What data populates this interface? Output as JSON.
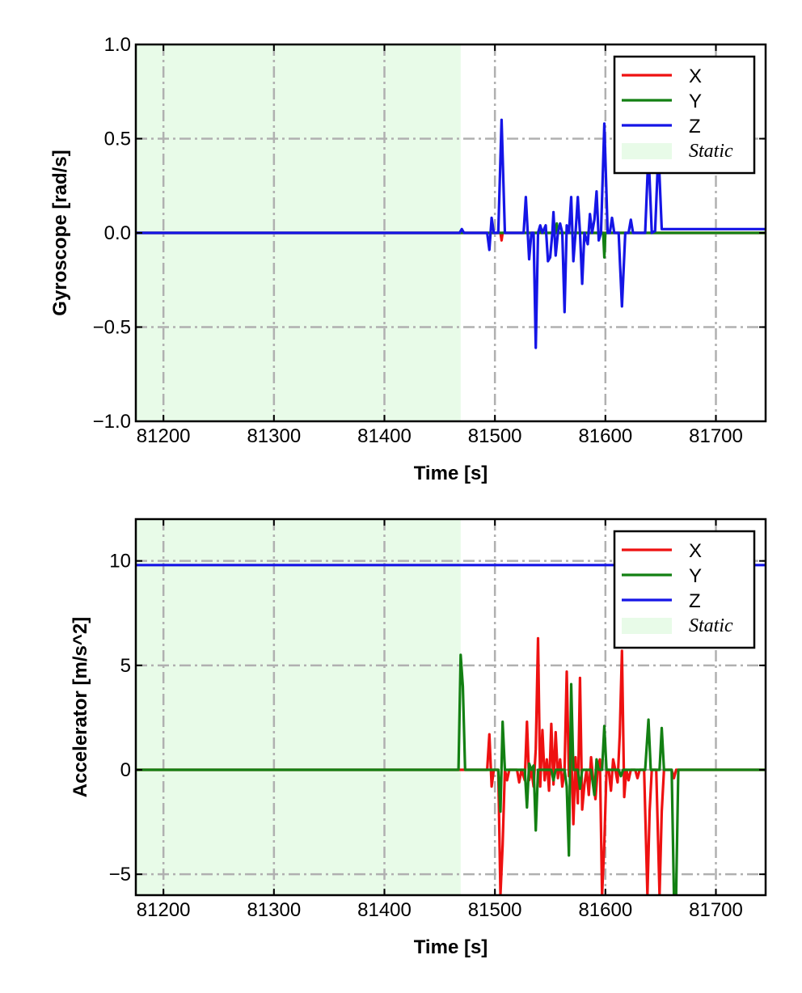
{
  "chart_data": [
    {
      "type": "line",
      "xlabel": "Time [s]",
      "ylabel": "Gyroscope [rad/s]",
      "xlim": [
        81175,
        81745
      ],
      "ylim": [
        -1.0,
        1.0
      ],
      "xticks": [
        81200,
        81300,
        81400,
        81500,
        81600,
        81700
      ],
      "xtick_labels": [
        "81200",
        "81300",
        "81400",
        "81500",
        "81600",
        "81700"
      ],
      "yticks": [
        -1.0,
        -0.5,
        0.0,
        0.5,
        1.0
      ],
      "ytick_labels": [
        "−1.0",
        "−0.5",
        "0.0",
        "0.5",
        "1.0"
      ],
      "grid": true,
      "legend": "top-right",
      "static_region": {
        "label": "Static",
        "x": [
          81175,
          81469
        ],
        "color": "#e8fbe8"
      },
      "series": [
        {
          "name": "X",
          "color": "#ee1111",
          "points": [
            [
              81175,
              0.0
            ],
            [
              81469,
              0.0
            ],
            [
              81505,
              0.0
            ],
            [
              81506,
              -0.04
            ],
            [
              81507,
              0.0
            ],
            [
              81745,
              0.0
            ]
          ]
        },
        {
          "name": "Y",
          "color": "#138013",
          "points": [
            [
              81175,
              0.0
            ],
            [
              81469,
              0.0
            ],
            [
              81540,
              0.0
            ],
            [
              81541,
              0.03
            ],
            [
              81542,
              0.0
            ],
            [
              81555,
              0.0
            ],
            [
              81556,
              0.05
            ],
            [
              81557,
              0.0
            ],
            [
              81598,
              0.0
            ],
            [
              81599,
              -0.13
            ],
            [
              81600,
              0.0
            ],
            [
              81745,
              0.0
            ]
          ]
        },
        {
          "name": "Z",
          "color": "#1515e6",
          "points": [
            [
              81175,
              0.0
            ],
            [
              81468,
              0.0
            ],
            [
              81470,
              0.02
            ],
            [
              81472,
              0.0
            ],
            [
              81493,
              0.0
            ],
            [
              81495,
              -0.09
            ],
            [
              81497,
              0.08
            ],
            [
              81499,
              0.0
            ],
            [
              81503,
              0.0
            ],
            [
              81506,
              0.6
            ],
            [
              81509,
              0.0
            ],
            [
              81526,
              0.0
            ],
            [
              81528,
              0.19
            ],
            [
              81531,
              -0.14
            ],
            [
              81533,
              0.0
            ],
            [
              81535,
              0.0
            ],
            [
              81537,
              -0.61
            ],
            [
              81539,
              0.0
            ],
            [
              81541,
              0.04
            ],
            [
              81543,
              0.0
            ],
            [
              81546,
              0.04
            ],
            [
              81548,
              -0.15
            ],
            [
              81550,
              -0.13
            ],
            [
              81552,
              0.0
            ],
            [
              81553,
              0.11
            ],
            [
              81555,
              -0.12
            ],
            [
              81557,
              0.0
            ],
            [
              81559,
              0.05
            ],
            [
              81561,
              0.0
            ],
            [
              81563,
              -0.42
            ],
            [
              81565,
              0.04
            ],
            [
              81567,
              0.0
            ],
            [
              81569,
              0.19
            ],
            [
              81571,
              -0.15
            ],
            [
              81573,
              0.0
            ],
            [
              81575,
              0.19
            ],
            [
              81577,
              0.0
            ],
            [
              81579,
              -0.27
            ],
            [
              81581,
              0.0
            ],
            [
              81584,
              -0.06
            ],
            [
              81586,
              0.1
            ],
            [
              81588,
              0.0
            ],
            [
              81590,
              0.07
            ],
            [
              81592,
              0.22
            ],
            [
              81594,
              -0.04
            ],
            [
              81596,
              0.0
            ],
            [
              81599,
              0.58
            ],
            [
              81602,
              0.0
            ],
            [
              81604,
              0.0
            ],
            [
              81606,
              0.08
            ],
            [
              81608,
              0.0
            ],
            [
              81612,
              0.0
            ],
            [
              81615,
              -0.39
            ],
            [
              81618,
              0.0
            ],
            [
              81621,
              0.0
            ],
            [
              81623,
              0.07
            ],
            [
              81625,
              0.0
            ],
            [
              81636,
              0.0
            ],
            [
              81639,
              0.43
            ],
            [
              81642,
              0.0
            ],
            [
              81645,
              0.01
            ],
            [
              81648,
              0.44
            ],
            [
              81651,
              0.02
            ],
            [
              81690,
              0.02
            ],
            [
              81745,
              0.02
            ]
          ]
        }
      ]
    },
    {
      "type": "line",
      "xlabel": "Time [s]",
      "ylabel": "Accelerator [m/s^2]",
      "xlim": [
        81175,
        81745
      ],
      "ylim": [
        -6.0,
        12.0
      ],
      "xticks": [
        81200,
        81300,
        81400,
        81500,
        81600,
        81700
      ],
      "xtick_labels": [
        "81200",
        "81300",
        "81400",
        "81500",
        "81600",
        "81700"
      ],
      "yticks": [
        -5,
        0,
        5,
        10
      ],
      "ytick_labels": [
        "−5",
        "0",
        "5",
        "10"
      ],
      "grid": true,
      "legend": "top-right",
      "static_region": {
        "label": "Static",
        "x": [
          81175,
          81469
        ],
        "color": "#e8fbe8"
      },
      "series": [
        {
          "name": "X",
          "color": "#ee1111",
          "points": [
            [
              81175,
              0.0
            ],
            [
              81469,
              0.0
            ],
            [
              81493,
              0.0
            ],
            [
              81495,
              1.7
            ],
            [
              81497,
              -0.8
            ],
            [
              81499,
              0.0
            ],
            [
              81503,
              0.0
            ],
            [
              81505,
              -6.0
            ],
            [
              81507,
              -3.6
            ],
            [
              81509,
              0.0
            ],
            [
              81511,
              -0.5
            ],
            [
              81513,
              0.0
            ],
            [
              81520,
              0.0
            ],
            [
              81522,
              -0.6
            ],
            [
              81524,
              0.0
            ],
            [
              81527,
              -0.5
            ],
            [
              81529,
              2.3
            ],
            [
              81531,
              -0.5
            ],
            [
              81533,
              0.0
            ],
            [
              81535,
              -0.8
            ],
            [
              81537,
              1.0
            ],
            [
              81539,
              6.3
            ],
            [
              81541,
              -0.8
            ],
            [
              81543,
              1.9
            ],
            [
              81545,
              -0.5
            ],
            [
              81547,
              0.5
            ],
            [
              81549,
              -1.0
            ],
            [
              81551,
              2.2
            ],
            [
              81553,
              -0.7
            ],
            [
              81555,
              1.8
            ],
            [
              81557,
              -0.4
            ],
            [
              81559,
              0.5
            ],
            [
              81561,
              -0.8
            ],
            [
              81563,
              0.0
            ],
            [
              81565,
              4.7
            ],
            [
              81567,
              -0.3
            ],
            [
              81569,
              1.1
            ],
            [
              81571,
              -2.6
            ],
            [
              81573,
              0.6
            ],
            [
              81575,
              -1.6
            ],
            [
              81577,
              4.4
            ],
            [
              81579,
              -1.9
            ],
            [
              81581,
              -0.7
            ],
            [
              81583,
              0.0
            ],
            [
              81585,
              -1.2
            ],
            [
              81587,
              0.6
            ],
            [
              81589,
              -0.5
            ],
            [
              81591,
              -1.4
            ],
            [
              81593,
              0.0
            ],
            [
              81595,
              0.5
            ],
            [
              81597,
              -6.0
            ],
            [
              81599,
              -3.5
            ],
            [
              81601,
              0.0
            ],
            [
              81603,
              0.0
            ],
            [
              81605,
              -1.0
            ],
            [
              81607,
              0.5
            ],
            [
              81609,
              0.0
            ],
            [
              81611,
              -0.6
            ],
            [
              81613,
              1.7
            ],
            [
              81615,
              5.7
            ],
            [
              81617,
              -1.3
            ],
            [
              81619,
              0.0
            ],
            [
              81621,
              -0.5
            ],
            [
              81623,
              0.0
            ],
            [
              81627,
              0.0
            ],
            [
              81629,
              -0.4
            ],
            [
              81631,
              0.0
            ],
            [
              81635,
              0.0
            ],
            [
              81638,
              -6.0
            ],
            [
              81640,
              -2.0
            ],
            [
              81642,
              0.0
            ],
            [
              81646,
              0.0
            ],
            [
              81649,
              -6.0
            ],
            [
              81651,
              -2.0
            ],
            [
              81653,
              0.0
            ],
            [
              81660,
              0.0
            ],
            [
              81662,
              -0.4
            ],
            [
              81664,
              0.0
            ],
            [
              81745,
              0.0
            ]
          ]
        },
        {
          "name": "Y",
          "color": "#138013",
          "points": [
            [
              81175,
              0.0
            ],
            [
              81467,
              0.0
            ],
            [
              81469,
              5.5
            ],
            [
              81471,
              4.0
            ],
            [
              81473,
              0.0
            ],
            [
              81503,
              0.0
            ],
            [
              81505,
              -2.0
            ],
            [
              81507,
              2.3
            ],
            [
              81509,
              0.0
            ],
            [
              81527,
              0.0
            ],
            [
              81529,
              -1.8
            ],
            [
              81531,
              0.3
            ],
            [
              81533,
              0.0
            ],
            [
              81535,
              0.2
            ],
            [
              81537,
              -2.9
            ],
            [
              81539,
              0.0
            ],
            [
              81551,
              0.0
            ],
            [
              81553,
              -0.5
            ],
            [
              81555,
              0.0
            ],
            [
              81563,
              0.0
            ],
            [
              81565,
              -0.8
            ],
            [
              81567,
              -4.1
            ],
            [
              81569,
              4.1
            ],
            [
              81571,
              0.0
            ],
            [
              81575,
              0.0
            ],
            [
              81577,
              -0.9
            ],
            [
              81579,
              0.0
            ],
            [
              81587,
              0.0
            ],
            [
              81590,
              -1.2
            ],
            [
              81592,
              0.5
            ],
            [
              81594,
              0.0
            ],
            [
              81597,
              0.0
            ],
            [
              81599,
              2.1
            ],
            [
              81601,
              0.0
            ],
            [
              81612,
              0.0
            ],
            [
              81614,
              -0.3
            ],
            [
              81616,
              0.0
            ],
            [
              81636,
              0.0
            ],
            [
              81639,
              2.4
            ],
            [
              81641,
              0.0
            ],
            [
              81649,
              0.0
            ],
            [
              81651,
              2.0
            ],
            [
              81653,
              0.0
            ],
            [
              81660,
              0.0
            ],
            [
              81662,
              -6.0
            ],
            [
              81664,
              -6.0
            ],
            [
              81666,
              0.0
            ],
            [
              81745,
              0.0
            ]
          ]
        },
        {
          "name": "Z",
          "color": "#1515e6",
          "points": [
            [
              81175,
              9.8
            ],
            [
              81745,
              9.8
            ]
          ]
        }
      ]
    }
  ]
}
